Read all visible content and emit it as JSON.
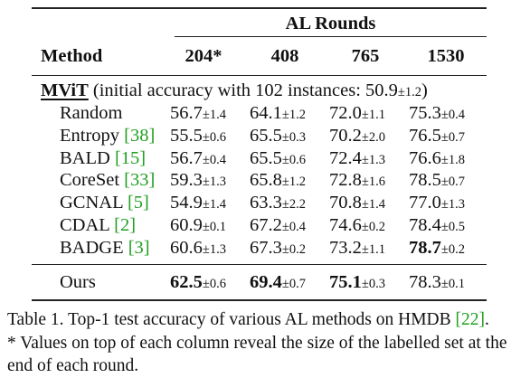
{
  "table": {
    "group_header": "AL Rounds",
    "method_header": "Method",
    "columns": [
      "204*",
      "408",
      "765",
      "1530"
    ],
    "section_title": "MViT",
    "section_note_prefix": "(initial accuracy with 102 instances: ",
    "section_note_value": "50.9",
    "section_note_pm": "±1.2",
    "section_note_suffix": ")",
    "rows": [
      {
        "name": "Random",
        "cite": "",
        "vals": [
          [
            "56.7",
            "±1.4"
          ],
          [
            "64.1",
            "±1.2"
          ],
          [
            "72.0",
            "±1.1"
          ],
          [
            "75.3",
            "±0.4"
          ]
        ]
      },
      {
        "name": "Entropy",
        "cite": "[38]",
        "vals": [
          [
            "55.5",
            "±0.6"
          ],
          [
            "65.5",
            "±0.3"
          ],
          [
            "70.2",
            "±2.0"
          ],
          [
            "76.5",
            "±0.7"
          ]
        ]
      },
      {
        "name": "BALD",
        "cite": "[15]",
        "vals": [
          [
            "56.7",
            "±0.4"
          ],
          [
            "65.5",
            "±0.6"
          ],
          [
            "72.4",
            "±1.3"
          ],
          [
            "76.6",
            "±1.8"
          ]
        ]
      },
      {
        "name": "CoreSet",
        "cite": "[33]",
        "vals": [
          [
            "59.3",
            "±1.3"
          ],
          [
            "65.8",
            "±1.2"
          ],
          [
            "72.8",
            "±1.6"
          ],
          [
            "78.5",
            "±0.7"
          ]
        ]
      },
      {
        "name": "GCNAL",
        "cite": "[5]",
        "vals": [
          [
            "54.9",
            "±1.4"
          ],
          [
            "63.3",
            "±2.2"
          ],
          [
            "70.8",
            "±1.4"
          ],
          [
            "77.0",
            "±1.3"
          ]
        ]
      },
      {
        "name": "CDAL",
        "cite": "[2]",
        "vals": [
          [
            "60.9",
            "±0.1"
          ],
          [
            "67.2",
            "±0.4"
          ],
          [
            "74.6",
            "±0.2"
          ],
          [
            "78.4",
            "±0.5"
          ]
        ]
      },
      {
        "name": "BADGE",
        "cite": "[3]",
        "vals": [
          [
            "60.6",
            "±1.3"
          ],
          [
            "67.3",
            "±0.2"
          ],
          [
            "73.2",
            "±1.1"
          ],
          [
            "78.7",
            "±0.2"
          ]
        ]
      }
    ],
    "ours": {
      "name": "Ours",
      "vals": [
        [
          "62.5",
          "±0.6"
        ],
        [
          "69.4",
          "±0.7"
        ],
        [
          "75.1",
          "±0.3"
        ],
        [
          "78.3",
          "±0.1"
        ]
      ]
    }
  },
  "caption": {
    "line1_prefix": "Table 1. Top-1 test accuracy of various AL methods on HMDB ",
    "line1_cite": "[22]",
    "line1_suffix": ".",
    "note": "* Values on top of each column reveal the size of the labelled set at the end of each round."
  }
}
